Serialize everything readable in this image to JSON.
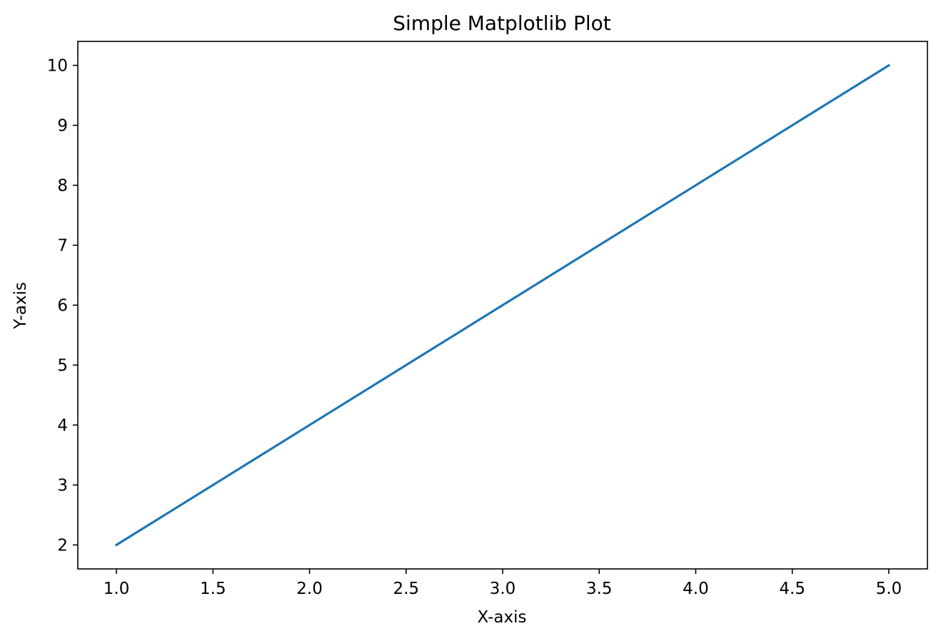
{
  "chart_data": {
    "type": "line",
    "title": "Simple Matplotlib Plot",
    "xlabel": "X-axis",
    "ylabel": "Y-axis",
    "x": [
      1,
      2,
      3,
      4,
      5
    ],
    "series": [
      {
        "values": [
          2,
          4,
          6,
          8,
          10
        ],
        "color": "#1f77b4"
      }
    ],
    "xlim": [
      0.8,
      5.2
    ],
    "ylim": [
      1.6,
      10.4
    ],
    "xticks": [
      "1.0",
      "1.5",
      "2.0",
      "2.5",
      "3.0",
      "3.5",
      "4.0",
      "4.5",
      "5.0"
    ],
    "yticks": [
      "2",
      "3",
      "4",
      "5",
      "6",
      "7",
      "8",
      "9",
      "10"
    ],
    "grid": false,
    "legend": false
  }
}
